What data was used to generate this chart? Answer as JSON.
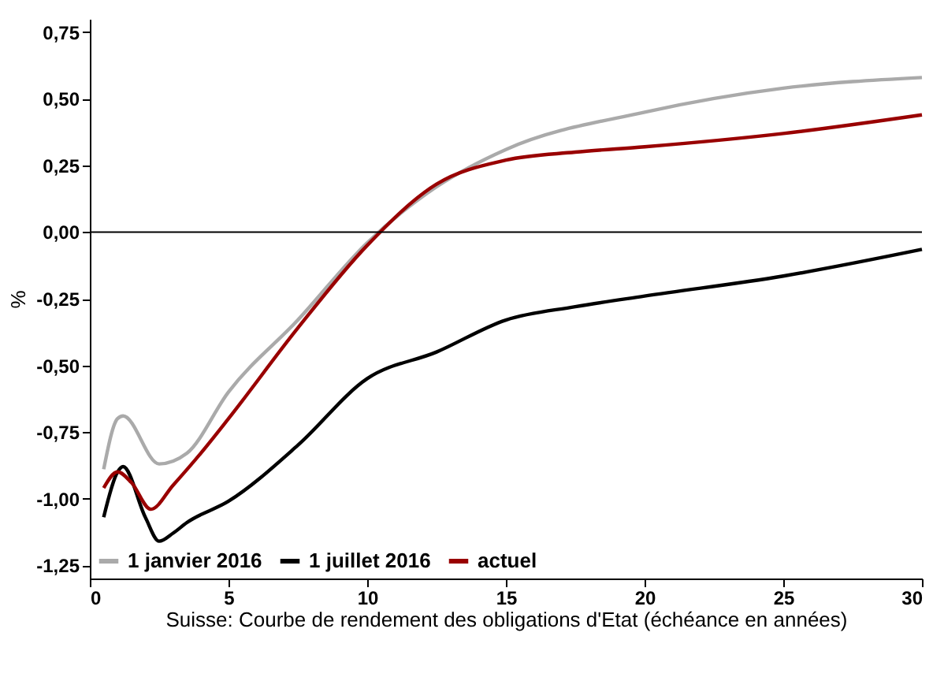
{
  "chart_data": {
    "type": "line",
    "xlabel": "Suisse: Courbe de rendement des obligations d'Etat (échéance en années)",
    "ylabel": "%",
    "xlim": [
      0,
      30
    ],
    "xticks": [
      0,
      5,
      10,
      15,
      20,
      25,
      30
    ],
    "ylim": [
      -1.3,
      0.8
    ],
    "yticks": [
      {
        "value": -1.25,
        "label": "-1,25"
      },
      {
        "value": -1,
        "label": "-1,00"
      },
      {
        "value": -0.75,
        "label": "-0,75"
      },
      {
        "value": -0.5,
        "label": "-0,50"
      },
      {
        "value": -0.25,
        "label": "-0,25"
      },
      {
        "value": 0,
        "label": "0,00"
      },
      {
        "value": 0.25,
        "label": "0,25"
      },
      {
        "value": 0.5,
        "label": "0,50"
      },
      {
        "value": 0.75,
        "label": "0,75"
      }
    ],
    "ref_lines": [
      {
        "axis": "y",
        "value": 0,
        "color": "#000000"
      }
    ],
    "legend": "bottom left",
    "grid": false,
    "marker": "none",
    "series": [
      {
        "name": "1 janvier 2016",
        "color": "#aaaaaa",
        "x": [
          0.5,
          1,
          1.2,
          2.5,
          3.5,
          5,
          7.5,
          10,
          12.5,
          15,
          20,
          25,
          30
        ],
        "values": [
          -0.89,
          -0.7,
          -0.69,
          -0.87,
          -0.83,
          -0.6,
          -0.33,
          -0.04,
          0.17,
          0.31,
          0.45,
          0.54,
          0.58
        ]
      },
      {
        "name": "1 juillet 2016",
        "color": "#000000",
        "x": [
          0.5,
          1,
          1.2,
          2,
          2.5,
          3,
          3.5,
          5,
          7.5,
          10,
          12.5,
          15,
          17.5,
          20,
          25,
          30
        ],
        "values": [
          -1.07,
          -0.9,
          -0.88,
          -1.07,
          -1.16,
          -1.13,
          -1.09,
          -1.01,
          -0.8,
          -0.55,
          -0.45,
          -0.33,
          -0.28,
          -0.24,
          -0.165,
          -0.065
        ]
      },
      {
        "name": "actuel",
        "color": "#990000",
        "x": [
          0.5,
          1,
          1.5,
          2.2,
          3,
          4,
          5,
          7.5,
          10,
          12.5,
          15,
          17.5,
          20,
          25,
          30
        ],
        "values": [
          -0.96,
          -0.9,
          -0.94,
          -1.04,
          -0.95,
          -0.83,
          -0.7,
          -0.36,
          -0.05,
          0.18,
          0.27,
          0.3,
          0.32,
          0.37,
          0.44
        ]
      }
    ]
  }
}
